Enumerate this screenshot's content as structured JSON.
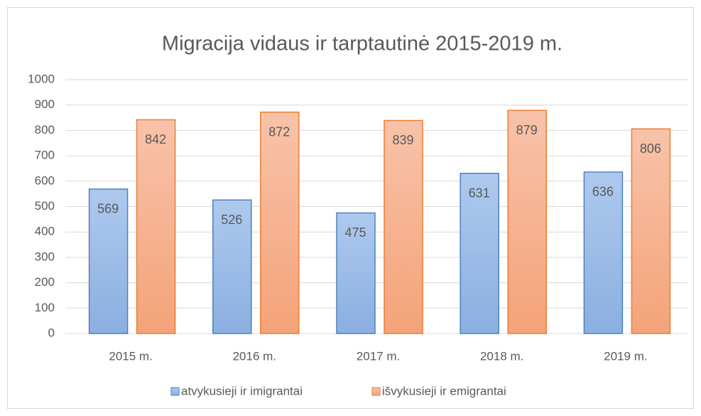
{
  "chart_data": {
    "type": "bar",
    "title": "Migracija vidaus ir tarptautinė 2015-2019 m.",
    "categories": [
      "2015 m.",
      "2016 m.",
      "2017 m.",
      "2018 m.",
      "2019 m."
    ],
    "series": [
      {
        "name": "atvykusieji ir imigrantai",
        "color": "#4f81bd",
        "values": [
          569,
          526,
          475,
          631,
          636
        ]
      },
      {
        "name": "išvykusieji ir emigrantai",
        "color": "#ed7d31",
        "values": [
          842,
          872,
          839,
          879,
          806
        ]
      }
    ],
    "ylim": [
      0,
      1000
    ],
    "yticks": [
      0,
      100,
      200,
      300,
      400,
      500,
      600,
      700,
      800,
      900,
      1000
    ],
    "grid": true,
    "legend": "bottom"
  }
}
